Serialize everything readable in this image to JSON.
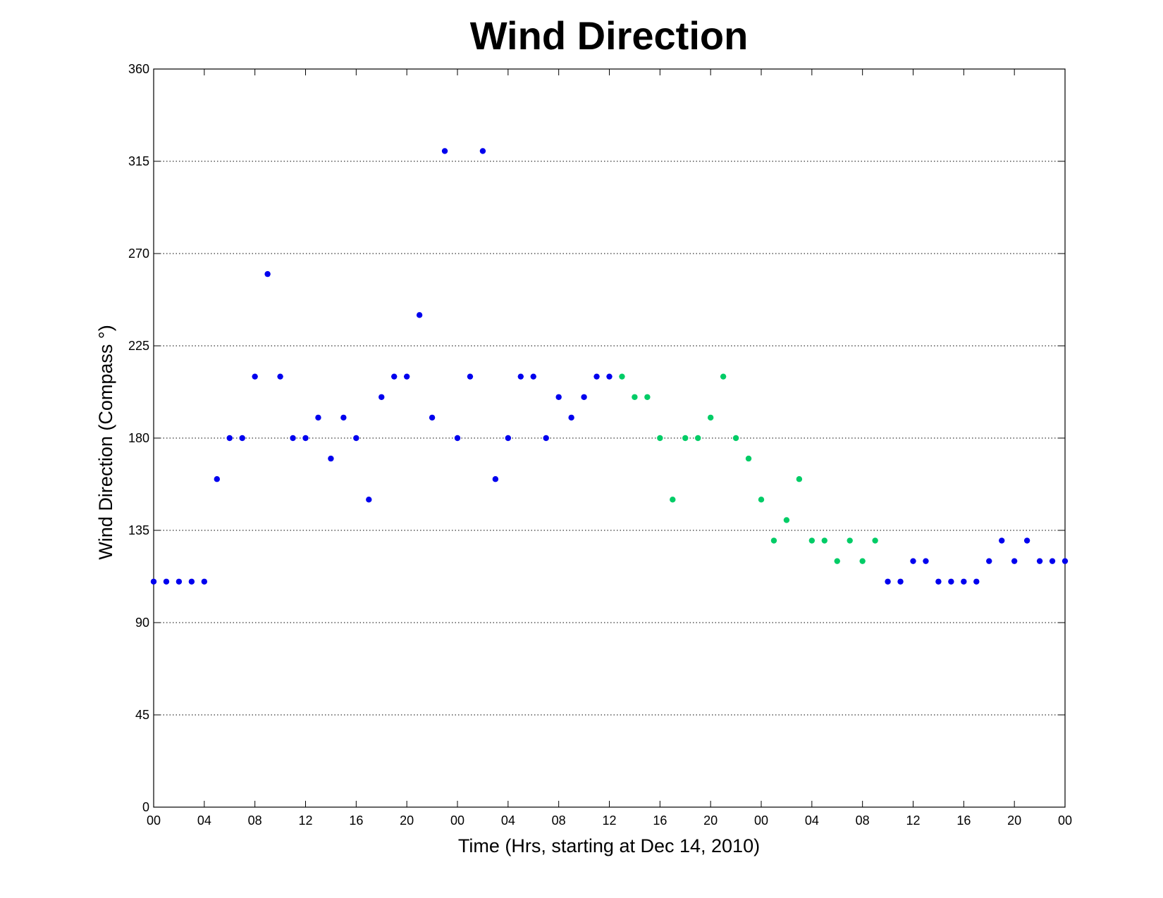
{
  "chart_data": {
    "type": "scatter",
    "title": "Wind Direction",
    "xlabel": "Time (Hrs, starting at Dec 14, 2010)",
    "ylabel": "Wind Direction (Compass  °)",
    "xlim": [
      0,
      72
    ],
    "ylim": [
      0,
      360
    ],
    "x_ticks": [
      0,
      4,
      8,
      12,
      16,
      20,
      24,
      28,
      32,
      36,
      40,
      44,
      48,
      52,
      56,
      60,
      64,
      68,
      72
    ],
    "x_tick_labels": [
      "00",
      "04",
      "08",
      "12",
      "16",
      "20",
      "00",
      "04",
      "08",
      "12",
      "16",
      "20",
      "00",
      "04",
      "08",
      "12",
      "16",
      "20",
      "00"
    ],
    "y_ticks": [
      0,
      45,
      90,
      135,
      180,
      225,
      270,
      315,
      360
    ],
    "grid": "horizontal dotted",
    "series": [
      {
        "color": "#0000ee",
        "x": [
          0,
          1,
          2,
          3,
          4,
          5,
          6,
          7,
          8,
          9,
          10,
          11,
          12,
          13,
          14,
          15,
          16,
          17,
          18,
          19,
          20,
          21,
          22,
          23,
          24,
          25,
          26,
          27,
          28,
          29,
          30,
          31,
          32,
          33,
          34,
          35,
          36,
          58,
          59,
          60,
          61,
          62,
          63,
          64,
          65,
          66,
          67,
          68,
          69,
          70,
          71,
          72
        ],
        "y": [
          110,
          110,
          110,
          110,
          110,
          160,
          180,
          180,
          210,
          260,
          210,
          180,
          180,
          190,
          170,
          190,
          180,
          150,
          200,
          210,
          210,
          240,
          190,
          320,
          180,
          210,
          320,
          160,
          180,
          210,
          210,
          180,
          200,
          190,
          200,
          210,
          210,
          110,
          110,
          120,
          120,
          110,
          110,
          110,
          110,
          120,
          130,
          120,
          130,
          120,
          120,
          120
        ]
      },
      {
        "color": "#00cc66",
        "x": [
          37,
          38,
          39,
          40,
          41,
          42,
          43,
          44,
          45,
          46,
          47,
          48,
          49,
          50,
          51,
          52,
          53,
          54,
          55,
          56,
          57
        ],
        "y": [
          210,
          200,
          200,
          180,
          150,
          180,
          180,
          190,
          210,
          180,
          170,
          150,
          130,
          140,
          160,
          130,
          130,
          120,
          130,
          120,
          130
        ]
      }
    ]
  }
}
